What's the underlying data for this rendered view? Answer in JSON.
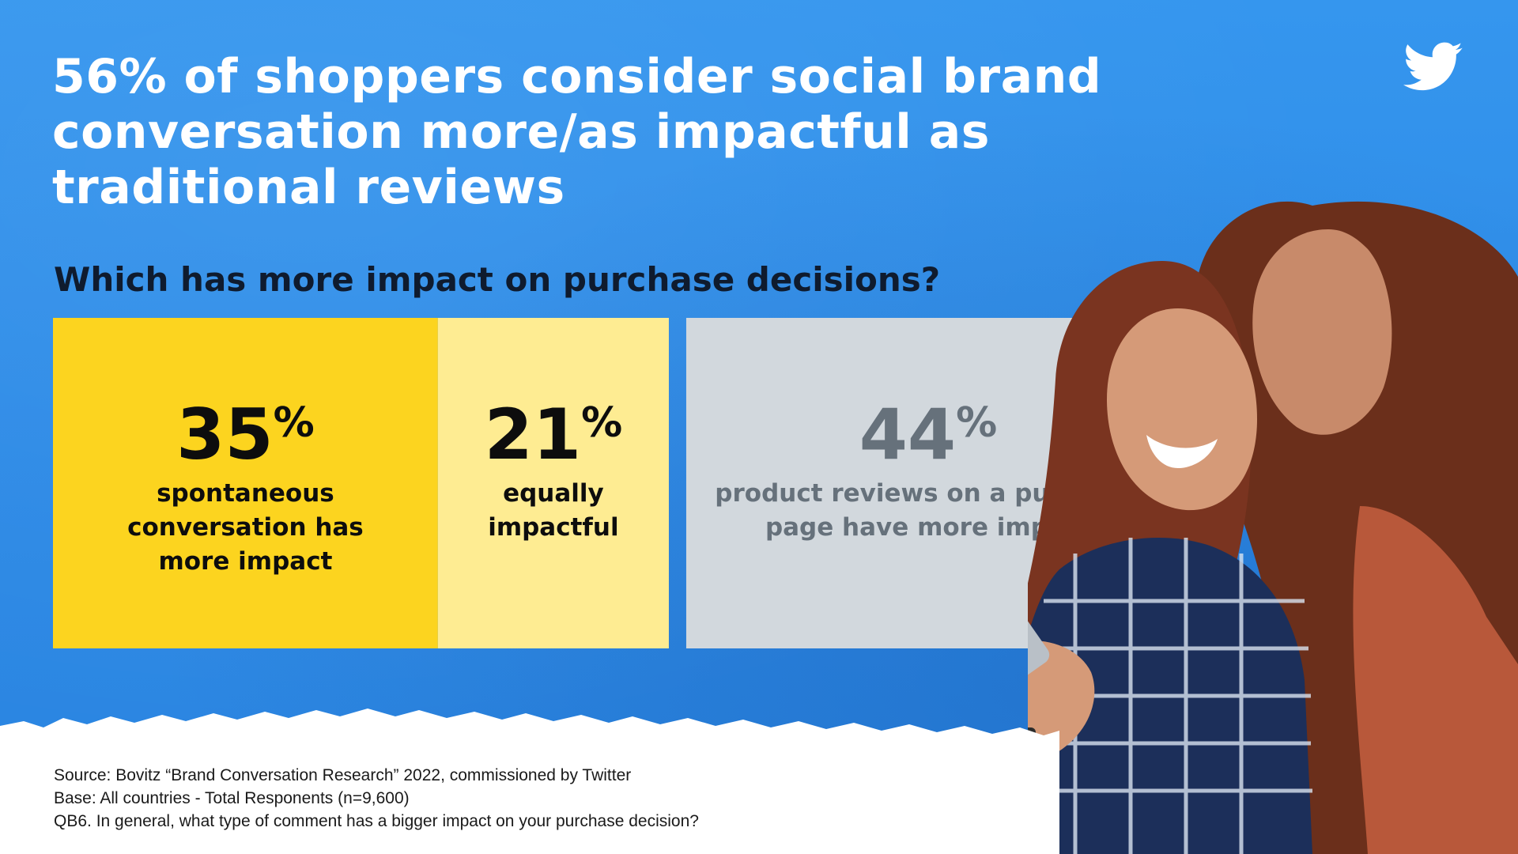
{
  "headline": {
    "lines": [
      "56% of shoppers consider social brand",
      "conversation more/as impactful as",
      "traditional reviews"
    ]
  },
  "brand_icon": "twitter-bird-icon",
  "chart_data": {
    "type": "bar",
    "orientation": "horizontal-stacked",
    "title": "Which has more impact on purchase decisions?",
    "total": 100,
    "unit": "%",
    "segments": [
      {
        "value": 35,
        "unit": "%",
        "label_lines": [
          "spontaneous",
          "conversation has",
          "more impact"
        ],
        "color": "#fcd41f",
        "text_color": "#0d0d0d"
      },
      {
        "value": 21,
        "unit": "%",
        "label_lines": [
          "equally",
          "impactful"
        ],
        "color": "#feec92",
        "text_color": "#0d0d0d"
      },
      {
        "value": 44,
        "unit": "%",
        "label_lines": [
          "product reviews on a purchase",
          "page have more impact"
        ],
        "color": "#d2d8dd",
        "text_color": "#66717b"
      }
    ]
  },
  "source_notes": [
    "Source: Bovitz “Brand Conversation Research” 2022, commissioned by Twitter",
    "Base: All countries - Total Responents (n=9,600)",
    "QB6. In general, what type of comment has a bigger impact on your purchase decision?"
  ],
  "colors": {
    "background_blue": "#2f8fe8",
    "paper_white": "#ffffff",
    "headline_text": "#ffffff",
    "question_text": "#0f1b2e"
  },
  "photo": "two-women-looking-at-smartphone"
}
